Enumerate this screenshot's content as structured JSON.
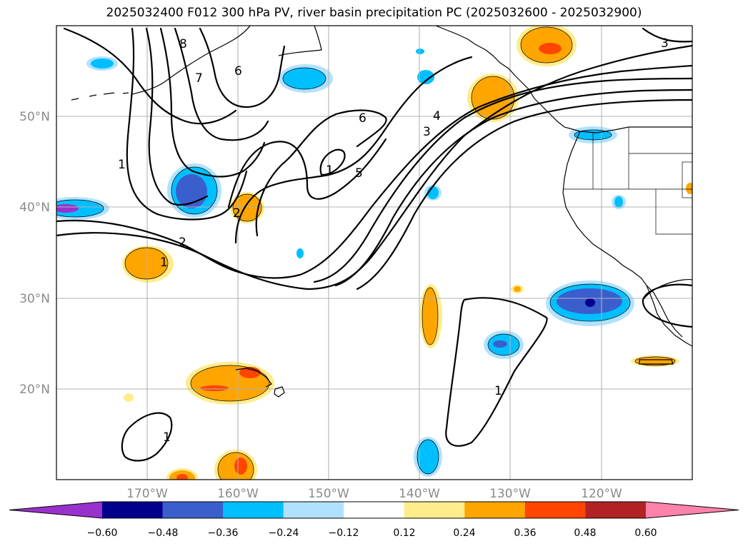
{
  "title": "2025032400 F012 300 hPa PV, river basin precipitation PC (2025032600 - 2025032900)",
  "map": {
    "lon_range": [
      -180,
      -110
    ],
    "lat_range": [
      10,
      60
    ],
    "lat_ticks": [
      "50°N",
      "40°N",
      "30°N",
      "20°N"
    ],
    "lon_ticks": [
      "170°W",
      "160°W",
      "150°W",
      "140°W",
      "130°W",
      "120°W"
    ],
    "contour_labels": [
      "8",
      "7",
      "6",
      "1",
      "2",
      "6",
      "5",
      "4",
      "3",
      "1",
      "2",
      "1",
      "1",
      "1",
      "3"
    ]
  },
  "colorbar": {
    "colors": [
      "#9932cc",
      "#00008b",
      "#3a5fcd",
      "#00bfff",
      "#b0e2ff",
      "#ffffff",
      "#ffec8b",
      "#ffa500",
      "#ff4500",
      "#b22222",
      "#ff82ab"
    ],
    "tick_labels": [
      "−0.60",
      "−0.48",
      "−0.36",
      "−0.24",
      "−0.12",
      "0.12",
      "0.24",
      "0.36",
      "0.48",
      "0.60"
    ]
  }
}
